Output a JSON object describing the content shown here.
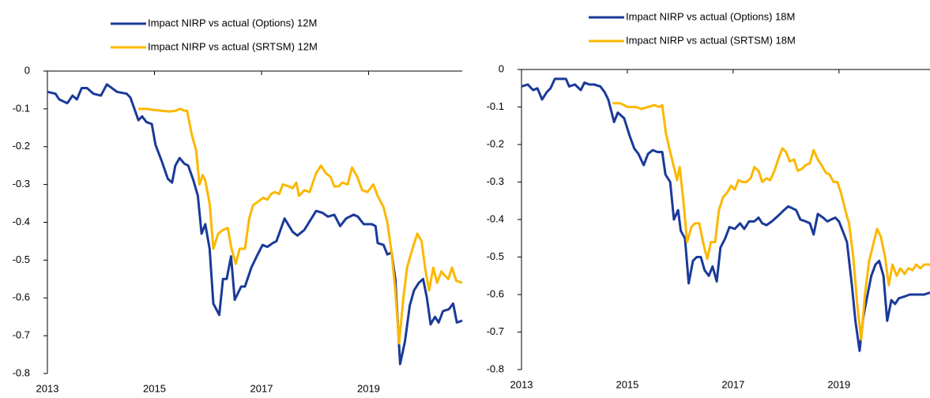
{
  "chart_data": [
    {
      "type": "line",
      "xlim": [
        2013,
        2020.75
      ],
      "xticks": [
        2013,
        2015,
        2017,
        2019
      ],
      "ylim": [
        -0.8,
        0
      ],
      "yticks": [
        0,
        -0.1,
        -0.2,
        -0.3,
        -0.4,
        -0.5,
        -0.6,
        -0.7,
        -0.8
      ],
      "grid": false,
      "legend": "top",
      "series": [
        {
          "name": "Impact NIRP vs actual (Options) 12M",
          "color": "#1a3a99",
          "x": [
            2013.0,
            2013.15,
            2013.22,
            2013.37,
            2013.47,
            2013.55,
            2013.64,
            2013.74,
            2013.86,
            2014.0,
            2014.11,
            2014.3,
            2014.48,
            2014.55,
            2014.7,
            2014.77,
            2014.85,
            2014.95,
            2015.02,
            2015.14,
            2015.25,
            2015.33,
            2015.39,
            2015.47,
            2015.56,
            2015.63,
            2015.73,
            2015.81,
            2015.88,
            2015.95,
            2016.03,
            2016.1,
            2016.21,
            2016.28,
            2016.35,
            2016.43,
            2016.5,
            2016.62,
            2016.69,
            2016.81,
            2016.91,
            2017.02,
            2017.11,
            2017.21,
            2017.28,
            2017.43,
            2017.58,
            2017.67,
            2017.8,
            2018.02,
            2018.14,
            2018.24,
            2018.36,
            2018.47,
            2018.58,
            2018.72,
            2018.8,
            2018.91,
            2019.06,
            2019.13,
            2019.17,
            2019.28,
            2019.35,
            2019.43,
            2019.5,
            2019.59,
            2019.68,
            2019.77,
            2019.85,
            2019.94,
            2020.02,
            2020.09,
            2020.16,
            2020.24,
            2020.31,
            2020.39,
            2020.5,
            2020.58,
            2020.65,
            2020.75
          ],
          "values": [
            -0.055,
            -0.06,
            -0.075,
            -0.085,
            -0.065,
            -0.075,
            -0.045,
            -0.045,
            -0.06,
            -0.065,
            -0.035,
            -0.055,
            -0.06,
            -0.07,
            -0.13,
            -0.12,
            -0.135,
            -0.14,
            -0.195,
            -0.24,
            -0.285,
            -0.295,
            -0.25,
            -0.23,
            -0.245,
            -0.25,
            -0.29,
            -0.33,
            -0.43,
            -0.405,
            -0.47,
            -0.615,
            -0.645,
            -0.55,
            -0.55,
            -0.49,
            -0.605,
            -0.57,
            -0.57,
            -0.52,
            -0.49,
            -0.46,
            -0.465,
            -0.455,
            -0.45,
            -0.39,
            -0.425,
            -0.435,
            -0.42,
            -0.37,
            -0.375,
            -0.385,
            -0.38,
            -0.41,
            -0.39,
            -0.38,
            -0.385,
            -0.405,
            -0.405,
            -0.41,
            -0.455,
            -0.46,
            -0.485,
            -0.48,
            -0.55,
            -0.775,
            -0.715,
            -0.62,
            -0.58,
            -0.56,
            -0.55,
            -0.6,
            -0.67,
            -0.65,
            -0.665,
            -0.635,
            -0.63,
            -0.615,
            -0.665,
            -0.66
          ]
        },
        {
          "name": "Impact NIRP vs actual (SRTSM) 12M",
          "color": "#fbb800",
          "x": [
            2014.7,
            2014.85,
            2014.99,
            2015.14,
            2015.29,
            2015.39,
            2015.48,
            2015.56,
            2015.61,
            2015.7,
            2015.78,
            2015.84,
            2015.9,
            2015.95,
            2016.03,
            2016.1,
            2016.19,
            2016.28,
            2016.37,
            2016.44,
            2016.52,
            2016.59,
            2016.69,
            2016.77,
            2016.84,
            2016.94,
            2017.03,
            2017.11,
            2017.18,
            2017.25,
            2017.33,
            2017.4,
            2017.51,
            2017.58,
            2017.65,
            2017.7,
            2017.8,
            2017.9,
            2018.02,
            2018.11,
            2018.2,
            2018.29,
            2018.36,
            2018.44,
            2018.51,
            2018.61,
            2018.69,
            2018.79,
            2018.88,
            2018.98,
            2019.09,
            2019.17,
            2019.28,
            2019.35,
            2019.43,
            2019.5,
            2019.57,
            2019.65,
            2019.72,
            2019.82,
            2019.91,
            2019.99,
            2020.06,
            2020.13,
            2020.21,
            2020.28,
            2020.36,
            2020.42,
            2020.49,
            2020.56,
            2020.64,
            2020.75
          ],
          "values": [
            -0.1,
            -0.1,
            -0.103,
            -0.105,
            -0.107,
            -0.105,
            -0.1,
            -0.105,
            -0.105,
            -0.17,
            -0.21,
            -0.3,
            -0.275,
            -0.29,
            -0.35,
            -0.47,
            -0.43,
            -0.42,
            -0.415,
            -0.47,
            -0.51,
            -0.47,
            -0.47,
            -0.39,
            -0.355,
            -0.345,
            -0.335,
            -0.34,
            -0.325,
            -0.32,
            -0.325,
            -0.3,
            -0.305,
            -0.31,
            -0.295,
            -0.33,
            -0.315,
            -0.32,
            -0.27,
            -0.25,
            -0.27,
            -0.28,
            -0.305,
            -0.305,
            -0.295,
            -0.3,
            -0.255,
            -0.28,
            -0.315,
            -0.32,
            -0.3,
            -0.33,
            -0.36,
            -0.4,
            -0.48,
            -0.58,
            -0.72,
            -0.6,
            -0.52,
            -0.47,
            -0.43,
            -0.45,
            -0.525,
            -0.58,
            -0.52,
            -0.56,
            -0.53,
            -0.54,
            -0.55,
            -0.52,
            -0.555,
            -0.56
          ]
        }
      ]
    },
    {
      "type": "line",
      "xlim": [
        2013,
        2020.72
      ],
      "xticks": [
        2013,
        2015,
        2017,
        2019
      ],
      "ylim": [
        -0.8,
        0
      ],
      "yticks": [
        0,
        -0.1,
        -0.2,
        -0.3,
        -0.4,
        -0.5,
        -0.6,
        -0.7,
        -0.8
      ],
      "grid": false,
      "legend": "top",
      "series": [
        {
          "name": "Impact NIRP vs actual (Options) 18M",
          "color": "#1a3a99",
          "x": [
            2013.0,
            2013.12,
            2013.22,
            2013.3,
            2013.39,
            2013.48,
            2013.55,
            2013.63,
            2013.75,
            2013.84,
            2013.9,
            2014.01,
            2014.12,
            2014.19,
            2014.28,
            2014.37,
            2014.49,
            2014.57,
            2014.64,
            2014.75,
            2014.82,
            2014.94,
            2015.04,
            2015.13,
            2015.21,
            2015.31,
            2015.39,
            2015.48,
            2015.57,
            2015.66,
            2015.72,
            2015.81,
            2015.88,
            2015.96,
            2016.01,
            2016.09,
            2016.16,
            2016.24,
            2016.31,
            2016.39,
            2016.46,
            2016.54,
            2016.61,
            2016.69,
            2016.76,
            2016.85,
            2016.93,
            2017.03,
            2017.13,
            2017.21,
            2017.3,
            2017.4,
            2017.48,
            2017.55,
            2017.63,
            2017.73,
            2017.85,
            2017.96,
            2018.04,
            2018.12,
            2018.19,
            2018.27,
            2018.37,
            2018.45,
            2018.52,
            2018.6,
            2018.7,
            2018.78,
            2018.85,
            2018.93,
            2019.0,
            2019.07,
            2019.15,
            2019.24,
            2019.31,
            2019.39,
            2019.46,
            2019.54,
            2019.61,
            2019.69,
            2019.76,
            2019.84,
            2019.91,
            2019.99,
            2020.06,
            2020.13,
            2020.24,
            2020.34,
            2020.46,
            2020.61,
            2020.72
          ],
          "values": [
            -0.045,
            -0.04,
            -0.055,
            -0.05,
            -0.08,
            -0.06,
            -0.05,
            -0.025,
            -0.025,
            -0.025,
            -0.045,
            -0.04,
            -0.055,
            -0.035,
            -0.04,
            -0.04,
            -0.045,
            -0.06,
            -0.08,
            -0.14,
            -0.115,
            -0.13,
            -0.175,
            -0.21,
            -0.225,
            -0.255,
            -0.225,
            -0.215,
            -0.22,
            -0.22,
            -0.28,
            -0.3,
            -0.4,
            -0.375,
            -0.43,
            -0.45,
            -0.57,
            -0.51,
            -0.5,
            -0.5,
            -0.535,
            -0.55,
            -0.525,
            -0.565,
            -0.475,
            -0.45,
            -0.42,
            -0.425,
            -0.41,
            -0.425,
            -0.405,
            -0.405,
            -0.395,
            -0.41,
            -0.415,
            -0.405,
            -0.39,
            -0.375,
            -0.365,
            -0.37,
            -0.375,
            -0.4,
            -0.405,
            -0.41,
            -0.44,
            -0.385,
            -0.395,
            -0.405,
            -0.4,
            -0.395,
            -0.405,
            -0.43,
            -0.46,
            -0.57,
            -0.67,
            -0.75,
            -0.66,
            -0.6,
            -0.55,
            -0.52,
            -0.51,
            -0.55,
            -0.67,
            -0.615,
            -0.625,
            -0.61,
            -0.605,
            -0.6,
            -0.6,
            -0.6,
            -0.595
          ]
        },
        {
          "name": "Impact NIRP vs actual (SRTSM) 18M",
          "color": "#fbb800",
          "x": [
            2014.72,
            2014.87,
            2015.01,
            2015.16,
            2015.27,
            2015.39,
            2015.51,
            2015.61,
            2015.66,
            2015.73,
            2015.81,
            2015.88,
            2015.94,
            2015.99,
            2016.06,
            2016.13,
            2016.21,
            2016.28,
            2016.36,
            2016.43,
            2016.51,
            2016.58,
            2016.66,
            2016.73,
            2016.81,
            2016.88,
            2016.96,
            2017.03,
            2017.1,
            2017.18,
            2017.25,
            2017.33,
            2017.4,
            2017.48,
            2017.55,
            2017.63,
            2017.7,
            2017.78,
            2017.85,
            2017.93,
            2018.0,
            2018.07,
            2018.15,
            2018.22,
            2018.3,
            2018.37,
            2018.45,
            2018.52,
            2018.6,
            2018.67,
            2018.75,
            2018.82,
            2018.9,
            2018.97,
            2019.04,
            2019.12,
            2019.19,
            2019.27,
            2019.34,
            2019.42,
            2019.49,
            2019.57,
            2019.64,
            2019.72,
            2019.79,
            2019.87,
            2019.94,
            2020.01,
            2020.09,
            2020.16,
            2020.24,
            2020.31,
            2020.39,
            2020.46,
            2020.54,
            2020.61,
            2020.72
          ],
          "values": [
            -0.09,
            -0.09,
            -0.1,
            -0.1,
            -0.105,
            -0.1,
            -0.095,
            -0.1,
            -0.095,
            -0.17,
            -0.22,
            -0.26,
            -0.295,
            -0.26,
            -0.35,
            -0.46,
            -0.42,
            -0.41,
            -0.41,
            -0.46,
            -0.505,
            -0.46,
            -0.46,
            -0.375,
            -0.34,
            -0.33,
            -0.31,
            -0.32,
            -0.295,
            -0.3,
            -0.3,
            -0.29,
            -0.26,
            -0.27,
            -0.3,
            -0.29,
            -0.295,
            -0.27,
            -0.24,
            -0.21,
            -0.22,
            -0.245,
            -0.24,
            -0.27,
            -0.265,
            -0.255,
            -0.25,
            -0.215,
            -0.24,
            -0.255,
            -0.275,
            -0.28,
            -0.3,
            -0.3,
            -0.33,
            -0.375,
            -0.41,
            -0.5,
            -0.62,
            -0.72,
            -0.6,
            -0.51,
            -0.47,
            -0.425,
            -0.445,
            -0.5,
            -0.575,
            -0.52,
            -0.55,
            -0.53,
            -0.545,
            -0.53,
            -0.535,
            -0.52,
            -0.53,
            -0.52,
            -0.52
          ]
        }
      ]
    }
  ]
}
